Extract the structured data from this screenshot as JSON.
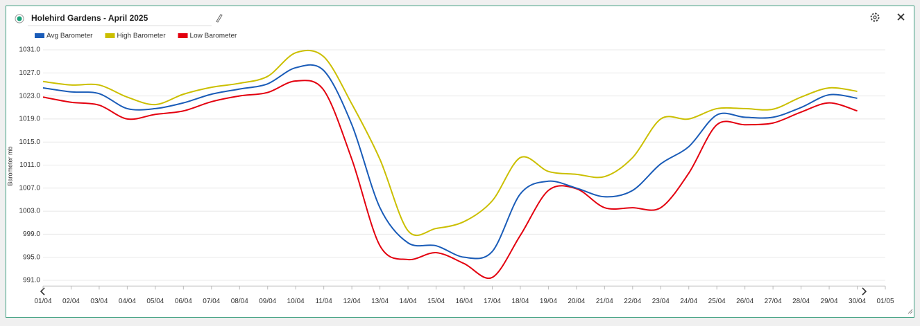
{
  "header": {
    "title": "Holehird Gardens - April 2025"
  },
  "chart_data": {
    "type": "line",
    "y_label": "Barometer mb",
    "grid": true,
    "x": [
      "01/04",
      "02/04",
      "03/04",
      "04/04",
      "05/04",
      "06/04",
      "07/04",
      "08/04",
      "09/04",
      "10/04",
      "11/04",
      "12/04",
      "13/04",
      "14/04",
      "15/04",
      "16/04",
      "17/04",
      "18/04",
      "19/04",
      "20/04",
      "21/04",
      "22/04",
      "23/04",
      "24/04",
      "25/04",
      "26/04",
      "27/04",
      "28/04",
      "29/04",
      "30/04",
      "01/05"
    ],
    "ylim": [
      990,
      1032
    ],
    "yticks": [
      {
        "value": 991,
        "label": "991.0"
      },
      {
        "value": 995,
        "label": "995.0"
      },
      {
        "value": 999,
        "label": "999.0"
      },
      {
        "value": 1003,
        "label": "1003.0"
      },
      {
        "value": 1007,
        "label": "1007.0"
      },
      {
        "value": 1011,
        "label": "1011.0"
      },
      {
        "value": 1015,
        "label": "1015.0"
      },
      {
        "value": 1019,
        "label": "1019.0"
      },
      {
        "value": 1023,
        "label": "1023.0"
      },
      {
        "value": 1027,
        "label": "1027.0"
      },
      {
        "value": 1031,
        "label": "1031.0"
      }
    ],
    "series": [
      {
        "name": "Avg Barometer",
        "color": "#1a5cb8",
        "values": [
          1024.4,
          1023.7,
          1023.4,
          1020.8,
          1020.8,
          1021.8,
          1023.3,
          1024.2,
          1025.1,
          1027.9,
          1027.4,
          1018.0,
          1003.6,
          997.5,
          997.0,
          995.0,
          996.0,
          1006.0,
          1008.2,
          1007.0,
          1005.5,
          1006.6,
          1011.2,
          1014.2,
          1019.7,
          1019.3,
          1019.3,
          1021.0,
          1023.2,
          1022.6,
          null
        ]
      },
      {
        "name": "High Barometer",
        "color": "#cbbf00",
        "values": [
          1025.5,
          1024.9,
          1024.9,
          1022.8,
          1021.5,
          1023.3,
          1024.5,
          1025.2,
          1026.4,
          1030.5,
          1029.8,
          1021.6,
          1012.0,
          999.6,
          1000.0,
          1001.2,
          1004.8,
          1012.3,
          1009.9,
          1009.4,
          1009.0,
          1012.3,
          1019.0,
          1019.0,
          1020.8,
          1020.8,
          1020.7,
          1022.8,
          1024.4,
          1023.8,
          null
        ]
      },
      {
        "name": "Low Barometer",
        "color": "#e3000f",
        "values": [
          1022.8,
          1021.9,
          1021.4,
          1019.0,
          1019.8,
          1020.4,
          1022.0,
          1023.0,
          1023.6,
          1025.6,
          1024.0,
          1012.0,
          997.0,
          994.6,
          995.8,
          993.9,
          991.5,
          998.8,
          1006.6,
          1006.9,
          1003.6,
          1003.6,
          1003.6,
          1009.6,
          1018.0,
          1018.0,
          1018.3,
          1020.2,
          1021.8,
          1020.4,
          null
        ]
      }
    ]
  }
}
